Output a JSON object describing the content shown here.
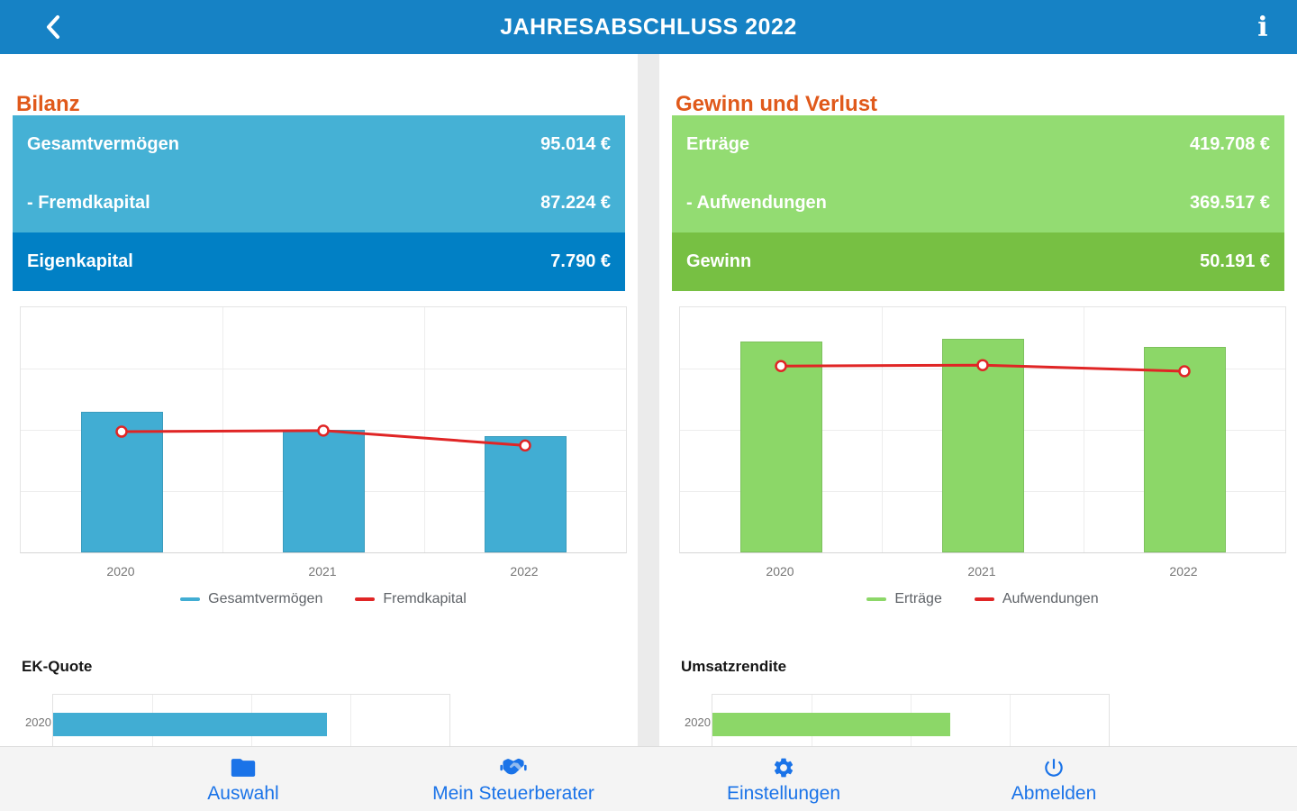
{
  "header": {
    "title": "JAHRESABSCHLUSS 2022",
    "info_glyph": "i"
  },
  "colors": {
    "topbar_blue": "#1682c5",
    "heading_orange": "#e0591b",
    "row_light_blue": "#45b1d5",
    "row_dark_blue": "#0180c5",
    "bar_blue": "#41add3",
    "row_light_green": "#93dc72",
    "row_dark_green": "#77c043",
    "bar_green": "#8cd768",
    "line_red": "#e02525",
    "nav_blue": "#1a73e8"
  },
  "panels": {
    "bilanz": {
      "title": "Bilanz",
      "rows": [
        {
          "label": "Gesamtvermögen",
          "value": "95.014 €"
        },
        {
          "label": "- Fremdkapital",
          "value": "87.224 €"
        },
        {
          "label": "Eigenkapital",
          "value": "7.790 €"
        }
      ],
      "mini_title": "EK-Quote",
      "mini_row_label": "2020"
    },
    "guv": {
      "title": "Gewinn und Verlust",
      "rows": [
        {
          "label": "Erträge",
          "value": "419.708 €"
        },
        {
          "label": "- Aufwendungen",
          "value": "369.517 €"
        },
        {
          "label": "Gewinn",
          "value": "50.191 €"
        }
      ],
      "mini_title": "Umsatzrendite",
      "mini_row_label": "2020"
    }
  },
  "chart_data": [
    {
      "id": "bilanz_chart",
      "type": "bar",
      "categories": [
        "2020",
        "2021",
        "2022"
      ],
      "series": [
        {
          "name": "Gesamtvermögen",
          "kind": "bar",
          "color": "#41add3",
          "values": [
            115000,
            100000,
            95014
          ]
        },
        {
          "name": "Fremdkapital",
          "kind": "line",
          "color": "#e02525",
          "values": [
            98500,
            99400,
            87224
          ]
        }
      ],
      "ylim": [
        0,
        200000
      ],
      "grid": true,
      "legend_position": "bottom",
      "note": "2022 values match summary rows; 2020/2021 estimated from bar heights"
    },
    {
      "id": "guv_chart",
      "type": "bar",
      "categories": [
        "2020",
        "2021",
        "2022"
      ],
      "series": [
        {
          "name": "Erträge",
          "kind": "bar",
          "color": "#8cd768",
          "values": [
            430000,
            435000,
            419708
          ]
        },
        {
          "name": "Aufwendungen",
          "kind": "line",
          "color": "#e02525",
          "values": [
            380000,
            382000,
            369517
          ]
        }
      ],
      "ylim": [
        0,
        500000
      ],
      "grid": true,
      "legend_position": "bottom",
      "note": "2022 values match summary rows; 2020/2021 estimated from bar heights"
    },
    {
      "id": "ek_quote_chart",
      "type": "bar",
      "orientation": "horizontal",
      "title": "EK-Quote",
      "categories": [
        "2020"
      ],
      "values": [
        69
      ],
      "xlim": [
        0,
        100
      ],
      "color": "#41add3",
      "note": "chart cropped by bottom nav; axis labels not visible, bar length ~69% of axis"
    },
    {
      "id": "umsatzrendite_chart",
      "type": "bar",
      "orientation": "horizontal",
      "title": "Umsatzrendite",
      "categories": [
        "2020"
      ],
      "values": [
        60
      ],
      "xlim": [
        0,
        100
      ],
      "color": "#8cd768",
      "note": "chart cropped by bottom nav; axis labels not visible, bar length ~60% of axis"
    }
  ],
  "nav": {
    "items": [
      {
        "label": "Auswahl",
        "icon": "folder-icon"
      },
      {
        "label": "Mein Steuerberater",
        "icon": "handshake-icon"
      },
      {
        "label": "Einstellungen",
        "icon": "gear-icon"
      },
      {
        "label": "Abmelden",
        "icon": "power-icon"
      }
    ]
  }
}
